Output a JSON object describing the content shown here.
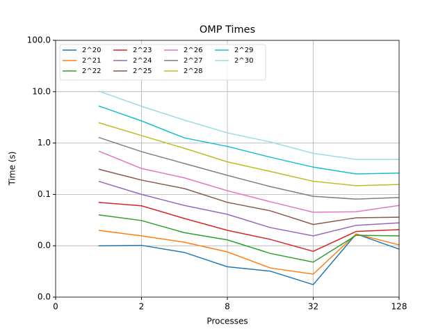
{
  "chart_data": {
    "type": "line",
    "title": "OMP Times",
    "x_label": "Processes",
    "y_label": "Time (s)",
    "x": [
      1,
      2,
      4,
      8,
      16,
      32,
      64,
      128
    ],
    "xscale": "log2",
    "yscale": "log10",
    "grid": true,
    "legend": "upper left",
    "xlim": [
      0.5,
      128
    ],
    "xticks": [
      {
        "value": 0.5,
        "label": "0"
      },
      2,
      8,
      32,
      128
    ],
    "ylim": [
      0.001,
      100
    ],
    "yticks": [
      {
        "value": 0.001,
        "label": "0.0"
      },
      {
        "value": 0.01,
        "label": "0.0"
      },
      0.1,
      {
        "value": 1,
        "label": "1.0"
      },
      {
        "value": 10,
        "label": "10.0"
      },
      {
        "value": 100,
        "label": "100.0"
      }
    ],
    "series": [
      {
        "name": "2^20",
        "color": "#1f77b4",
        "values": [
          0.01,
          0.0102,
          0.0074,
          0.0039,
          0.0032,
          0.00175,
          0.017,
          0.0086
        ]
      },
      {
        "name": "2^21",
        "color": "#ff7f0e",
        "values": [
          0.02,
          0.0156,
          0.0117,
          0.0076,
          0.0037,
          0.0028,
          0.017,
          0.0104
        ]
      },
      {
        "name": "2^22",
        "color": "#2ca02c",
        "values": [
          0.04,
          0.031,
          0.018,
          0.013,
          0.0071,
          0.0048,
          0.016,
          0.0156
        ]
      },
      {
        "name": "2^23",
        "color": "#d62728",
        "values": [
          0.07,
          0.06,
          0.034,
          0.02,
          0.0133,
          0.0078,
          0.019,
          0.0206
        ]
      },
      {
        "name": "2^24",
        "color": "#9467bd",
        "values": [
          0.18,
          0.1,
          0.061,
          0.041,
          0.0226,
          0.0156,
          0.025,
          0.028
        ]
      },
      {
        "name": "2^25",
        "color": "#8c564b",
        "values": [
          0.31,
          0.19,
          0.13,
          0.07,
          0.048,
          0.026,
          0.035,
          0.036
        ]
      },
      {
        "name": "2^26",
        "color": "#e377c2",
        "values": [
          0.7,
          0.32,
          0.21,
          0.118,
          0.072,
          0.045,
          0.046,
          0.061
        ]
      },
      {
        "name": "2^27",
        "color": "#7f7f7f",
        "values": [
          1.29,
          0.68,
          0.4,
          0.235,
          0.142,
          0.092,
          0.081,
          0.087
        ]
      },
      {
        "name": "2^28",
        "color": "#bcbd22",
        "values": [
          2.5,
          1.4,
          0.79,
          0.43,
          0.28,
          0.18,
          0.148,
          0.156
        ]
      },
      {
        "name": "2^29",
        "color": "#17becf",
        "values": [
          5.3,
          2.7,
          1.26,
          0.86,
          0.53,
          0.34,
          0.25,
          0.26
        ]
      },
      {
        "name": "2^30",
        "color": "#9edae5",
        "values": [
          10.3,
          5.2,
          2.8,
          1.58,
          1.05,
          0.63,
          0.48,
          0.48
        ]
      }
    ]
  }
}
